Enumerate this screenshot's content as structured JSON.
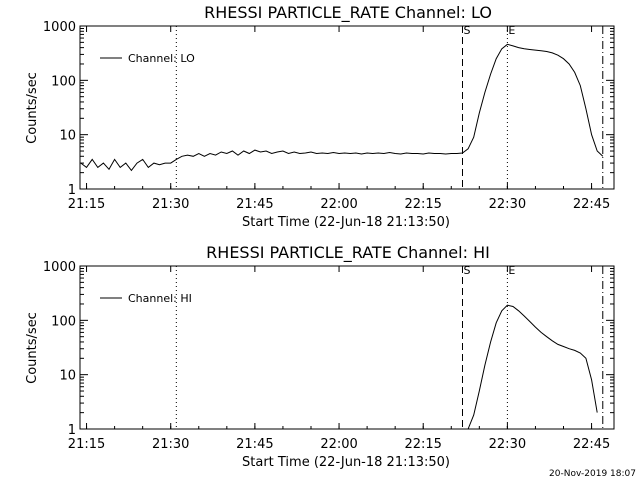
{
  "chart_data": [
    {
      "type": "line",
      "title": "RHESSI PARTICLE_RATE Channel: LO",
      "xlabel": "Start Time (22-Jun-18 21:13:50)",
      "ylabel": "Counts/sec",
      "y_scale": "log",
      "ylim": [
        1,
        1000
      ],
      "xlim": [
        "21:13:50",
        "22:49:00"
      ],
      "x_ticks": [
        "21:15",
        "21:30",
        "21:45",
        "22:00",
        "22:15",
        "22:30",
        "22:45"
      ],
      "y_ticks": [
        "1",
        "10",
        "100",
        "1000"
      ],
      "grid": false,
      "legend_position": "top-left",
      "markers": [
        {
          "time": "21:31",
          "style": "dotted",
          "label": ""
        },
        {
          "time": "22:22",
          "style": "dashed",
          "label": "S"
        },
        {
          "time": "22:30",
          "style": "dotted",
          "label": "E"
        },
        {
          "time": "22:47",
          "style": "dash-dot",
          "label": ""
        }
      ],
      "series": [
        {
          "name": "Channel: LO",
          "x": [
            "21:14",
            "21:15",
            "21:16",
            "21:17",
            "21:18",
            "21:19",
            "21:20",
            "21:21",
            "21:22",
            "21:23",
            "21:24",
            "21:25",
            "21:26",
            "21:27",
            "21:28",
            "21:29",
            "21:30",
            "21:31",
            "21:32",
            "21:33",
            "21:34",
            "21:35",
            "21:36",
            "21:37",
            "21:38",
            "21:39",
            "21:40",
            "21:41",
            "21:42",
            "21:43",
            "21:44",
            "21:45",
            "21:46",
            "21:47",
            "21:48",
            "21:49",
            "21:50",
            "21:51",
            "21:52",
            "21:53",
            "21:54",
            "21:55",
            "21:56",
            "21:57",
            "21:58",
            "21:59",
            "22:00",
            "22:01",
            "22:02",
            "22:03",
            "22:04",
            "22:05",
            "22:06",
            "22:07",
            "22:08",
            "22:09",
            "22:10",
            "22:11",
            "22:12",
            "22:13",
            "22:14",
            "22:15",
            "22:16",
            "22:17",
            "22:18",
            "22:19",
            "22:20",
            "22:21",
            "22:22",
            "22:23",
            "22:24",
            "22:25",
            "22:26",
            "22:27",
            "22:28",
            "22:29",
            "22:30",
            "22:31",
            "22:32",
            "22:33",
            "22:34",
            "22:35",
            "22:36",
            "22:37",
            "22:38",
            "22:39",
            "22:40",
            "22:41",
            "22:42",
            "22:43",
            "22:44",
            "22:45",
            "22:46",
            "22:47"
          ],
          "y": [
            3,
            2.5,
            3.5,
            2.5,
            3,
            2.3,
            3.5,
            2.5,
            3,
            2.2,
            3,
            3.5,
            2.5,
            3,
            2.8,
            3,
            3,
            3.5,
            4,
            4.2,
            4,
            4.5,
            4,
            4.5,
            4.2,
            4.8,
            4.5,
            5,
            4.2,
            5,
            4.5,
            5.2,
            4.8,
            5,
            4.5,
            4.8,
            5,
            4.5,
            4.8,
            4.5,
            4.6,
            4.8,
            4.5,
            4.6,
            4.5,
            4.7,
            4.5,
            4.6,
            4.5,
            4.6,
            4.4,
            4.6,
            4.5,
            4.6,
            4.5,
            4.7,
            4.5,
            4.4,
            4.6,
            4.5,
            4.5,
            4.4,
            4.6,
            4.5,
            4.5,
            4.4,
            4.5,
            4.5,
            4.6,
            5.5,
            9,
            25,
            60,
            130,
            250,
            380,
            460,
            430,
            400,
            380,
            370,
            360,
            350,
            340,
            320,
            290,
            250,
            200,
            140,
            80,
            30,
            10,
            5,
            4
          ]
        }
      ]
    },
    {
      "type": "line",
      "title": "RHESSI PARTICLE_RATE Channel: HI",
      "xlabel": "Start Time (22-Jun-18 21:13:50)",
      "ylabel": "Counts/sec",
      "y_scale": "log",
      "ylim": [
        1,
        1000
      ],
      "xlim": [
        "21:13:50",
        "22:49:00"
      ],
      "x_ticks": [
        "21:15",
        "21:30",
        "21:45",
        "22:00",
        "22:15",
        "22:30",
        "22:45"
      ],
      "y_ticks": [
        "1",
        "10",
        "100",
        "1000"
      ],
      "grid": false,
      "legend_position": "top-left",
      "markers": [
        {
          "time": "21:31",
          "style": "dotted",
          "label": ""
        },
        {
          "time": "22:22",
          "style": "dashed",
          "label": "S"
        },
        {
          "time": "22:30",
          "style": "dotted",
          "label": "E"
        },
        {
          "time": "22:47",
          "style": "dash-dot",
          "label": ""
        }
      ],
      "series": [
        {
          "name": "Channel: HI",
          "x": [
            "22:23",
            "22:24",
            "22:25",
            "22:26",
            "22:27",
            "22:28",
            "22:29",
            "22:30",
            "22:31",
            "22:32",
            "22:33",
            "22:34",
            "22:35",
            "22:36",
            "22:37",
            "22:38",
            "22:39",
            "22:40",
            "22:41",
            "22:42",
            "22:43",
            "22:44",
            "22:45",
            "22:46"
          ],
          "y": [
            1,
            1.8,
            5,
            15,
            40,
            90,
            150,
            190,
            180,
            150,
            120,
            95,
            75,
            60,
            50,
            42,
            36,
            33,
            30,
            28,
            25,
            20,
            8,
            2
          ]
        }
      ]
    }
  ],
  "footer": {
    "timestamp": "20-Nov-2019 18:07"
  }
}
